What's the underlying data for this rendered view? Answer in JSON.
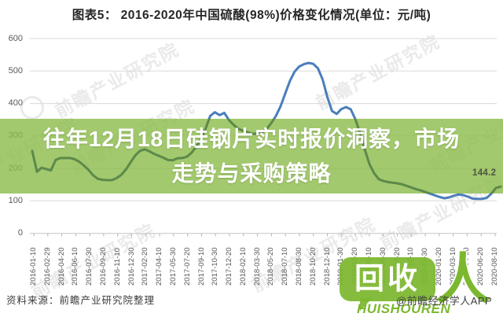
{
  "title": "图表5：  2016-2020年中国硫酸(98%)价格变化情况(单位：元/吨)",
  "overlay": {
    "line1": "往年12月18日硅钢片实时报价洞察，市场",
    "line2": "走势与采购策略",
    "bg_color": "#8cbb4a",
    "text_color": "#ffffff"
  },
  "source": "资料来源：前瞻产业研究院整理",
  "watermark_text": "前瞻产业研究院",
  "logo": {
    "bubble_text": "回收",
    "latin_text": "HUISHOUREN",
    "person_glyph": "人",
    "credit": "@前瞻经济学人APP",
    "green": "#7cb82f"
  },
  "chart_data": {
    "type": "line",
    "title": "2016-2020年中国硫酸(98%)价格变化情况",
    "unit": "元/吨",
    "line_color": "#4a7ebb",
    "line_color_under_overlay": "#5d8a4a",
    "grid": true,
    "ylim": [
      0,
      600
    ],
    "y_ticks": [
      600,
      500,
      400,
      300,
      200,
      100,
      0
    ],
    "x_labels": [
      "2016-01-10",
      "2016-02-29",
      "2016-04-20",
      "2016-06-10",
      "2016-07-30",
      "2016-09-20",
      "2016-11-10",
      "2016-12-30",
      "2017-02-20",
      "2017-04-10",
      "2017-05-30",
      "2017-07-20",
      "2017-09-10",
      "2017-10-30",
      "2017-12-20",
      "2018-02-10",
      "2018-03-30",
      "2018-05-20",
      "2018-07-10",
      "2018-08-30",
      "2018-10-20",
      "2018-12-10",
      "2019-01-30",
      "2019-03-20",
      "2019-05-10",
      "2019-06-30",
      "2019-08-20",
      "2019-10-10",
      "2019-11-30",
      "2020-01-20",
      "2020-03-10",
      "2020-04-30",
      "2020-06-20",
      "2020-08-10"
    ],
    "series": [
      {
        "name": "硫酸(98%)价格",
        "values": [
          254,
          190,
          202,
          198,
          194,
          226,
          232,
          232,
          232,
          229,
          221,
          209,
          196,
          179,
          168,
          165,
          164,
          164,
          170,
          180,
          197,
          219,
          240,
          254,
          259,
          253,
          245,
          239,
          233,
          226,
          225,
          231,
          232,
          236,
          248,
          267,
          290,
          322,
          362,
          373,
          364,
          371,
          349,
          334,
          322,
          316,
          311,
          307,
          307,
          311,
          321,
          339,
          361,
          391,
          430,
          469,
          498,
          514,
          521,
          525,
          522,
          508,
          474,
          420,
          377,
          368,
          383,
          389,
          382,
          351,
          308,
          258,
          213,
          185,
          167,
          161,
          158,
          156,
          154,
          151,
          146,
          141,
          136,
          132,
          127,
          122,
          117,
          112,
          108,
          111,
          116,
          120,
          118,
          113,
          107,
          106,
          106,
          109,
          122,
          140,
          144.2
        ]
      }
    ],
    "end_label": "144.2",
    "legend": "none"
  }
}
